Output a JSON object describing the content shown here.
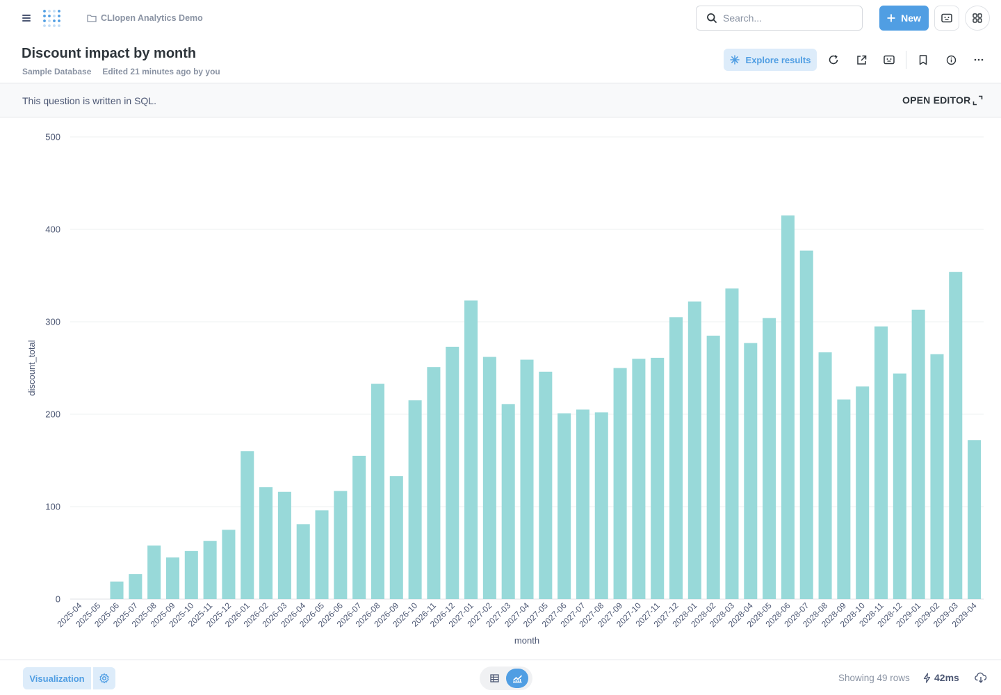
{
  "nav": {
    "collection": "CLIopen Analytics Demo",
    "search_placeholder": "Search...",
    "new_label": "New"
  },
  "header": {
    "title": "Discount impact by month",
    "database": "Sample Database",
    "edited": "Edited 21 minutes ago by you",
    "explore_label": "Explore results"
  },
  "sql_banner": {
    "message": "This question is written in SQL.",
    "open_editor": "OPEN EDITOR"
  },
  "footer": {
    "visualization_label": "Visualization",
    "rows_text": "Showing 49 rows",
    "timing": "42ms"
  },
  "colors": {
    "accent": "#509ee3",
    "bar": "#98d9d9"
  },
  "chart_data": {
    "type": "bar",
    "xlabel": "month",
    "ylabel": "discount_total",
    "ylim": [
      0,
      500
    ],
    "yticks": [
      0,
      100,
      200,
      300,
      400,
      500
    ],
    "grid": true,
    "categories": [
      "2025-04",
      "2025-05",
      "2025-06",
      "2025-07",
      "2025-08",
      "2025-09",
      "2025-10",
      "2025-11",
      "2025-12",
      "2026-01",
      "2026-02",
      "2026-03",
      "2026-04",
      "2026-05",
      "2026-06",
      "2026-07",
      "2026-08",
      "2026-09",
      "2026-10",
      "2026-11",
      "2026-12",
      "2027-01",
      "2027-02",
      "2027-03",
      "2027-04",
      "2027-05",
      "2027-06",
      "2027-07",
      "2027-08",
      "2027-09",
      "2027-10",
      "2027-11",
      "2027-12",
      "2028-01",
      "2028-02",
      "2028-03",
      "2028-04",
      "2028-05",
      "2028-06",
      "2028-07",
      "2028-08",
      "2028-09",
      "2028-10",
      "2028-11",
      "2028-12",
      "2029-01",
      "2029-02",
      "2029-03",
      "2029-04"
    ],
    "values": [
      0,
      0,
      19,
      27,
      58,
      45,
      52,
      63,
      75,
      160,
      121,
      116,
      81,
      96,
      117,
      155,
      233,
      133,
      215,
      251,
      273,
      323,
      262,
      211,
      259,
      246,
      201,
      205,
      202,
      250,
      260,
      261,
      305,
      322,
      285,
      336,
      277,
      304,
      415,
      377,
      267,
      216,
      230,
      295,
      244,
      313,
      265,
      354,
      172
    ]
  }
}
